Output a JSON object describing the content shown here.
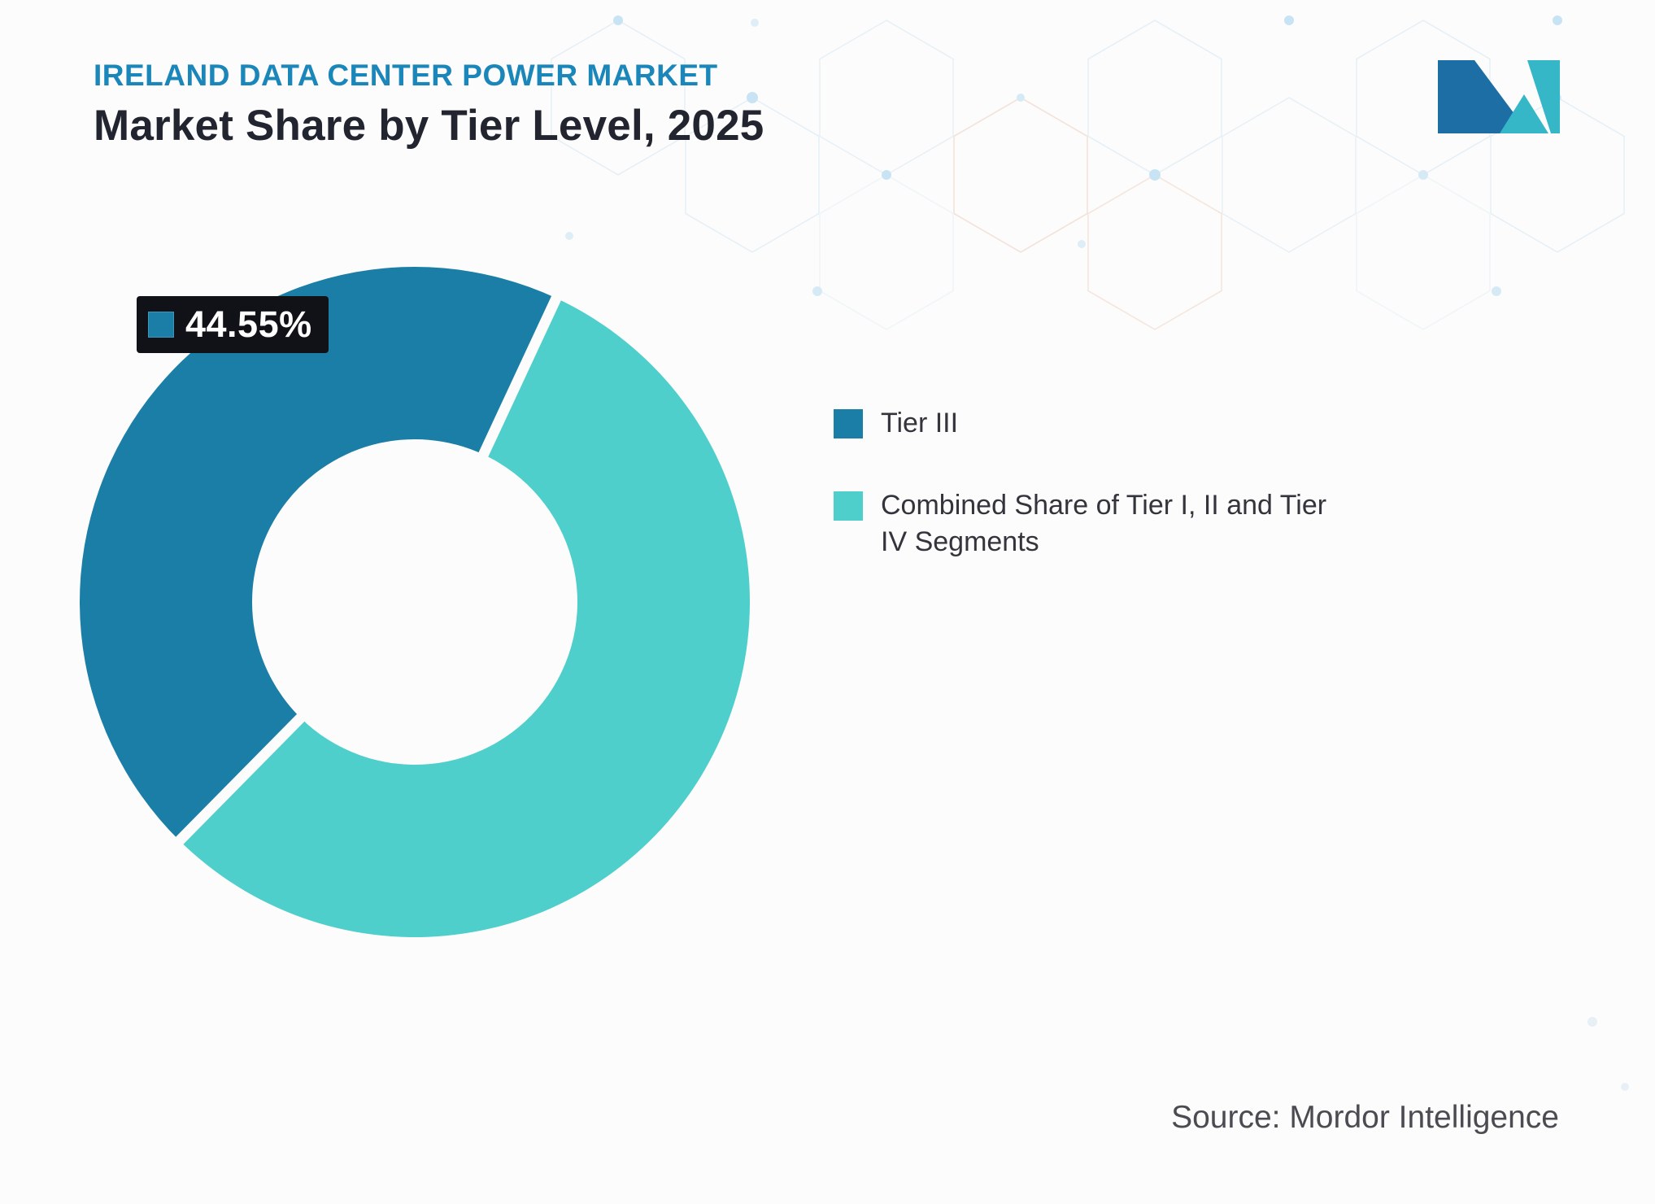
{
  "header": {
    "eyebrow": "IRELAND DATA CENTER POWER MARKET",
    "title": "Market Share by Tier Level, 2025"
  },
  "logo": {
    "name": "Mordor Intelligence",
    "dark_color": "#1c6ea4",
    "teal_color": "#36b7c8"
  },
  "chart_data": {
    "type": "pie",
    "donut": true,
    "title": "Market Share by Tier Level, 2025",
    "labels": [
      "Tier III",
      "Combined Share of Tier I, II and Tier IV Segments"
    ],
    "values": [
      44.55,
      55.45
    ],
    "colors": [
      "#1b7ea6",
      "#4fcfcb"
    ],
    "start_angle_deg": 224.6,
    "legend_position": "right",
    "data_labels": [
      {
        "segment": "Tier III",
        "text": "44.55%"
      }
    ]
  },
  "annotation": {
    "value": "44.55%",
    "swatch_color": "#1b7ea6"
  },
  "legend": {
    "items": [
      {
        "label": "Tier III",
        "color": "#1b7ea6"
      },
      {
        "label": "Combined Share of Tier I, II and Tier IV Segments",
        "color": "#4fcfcb"
      }
    ]
  },
  "footer": {
    "source": "Source: Mordor Intelligence"
  }
}
